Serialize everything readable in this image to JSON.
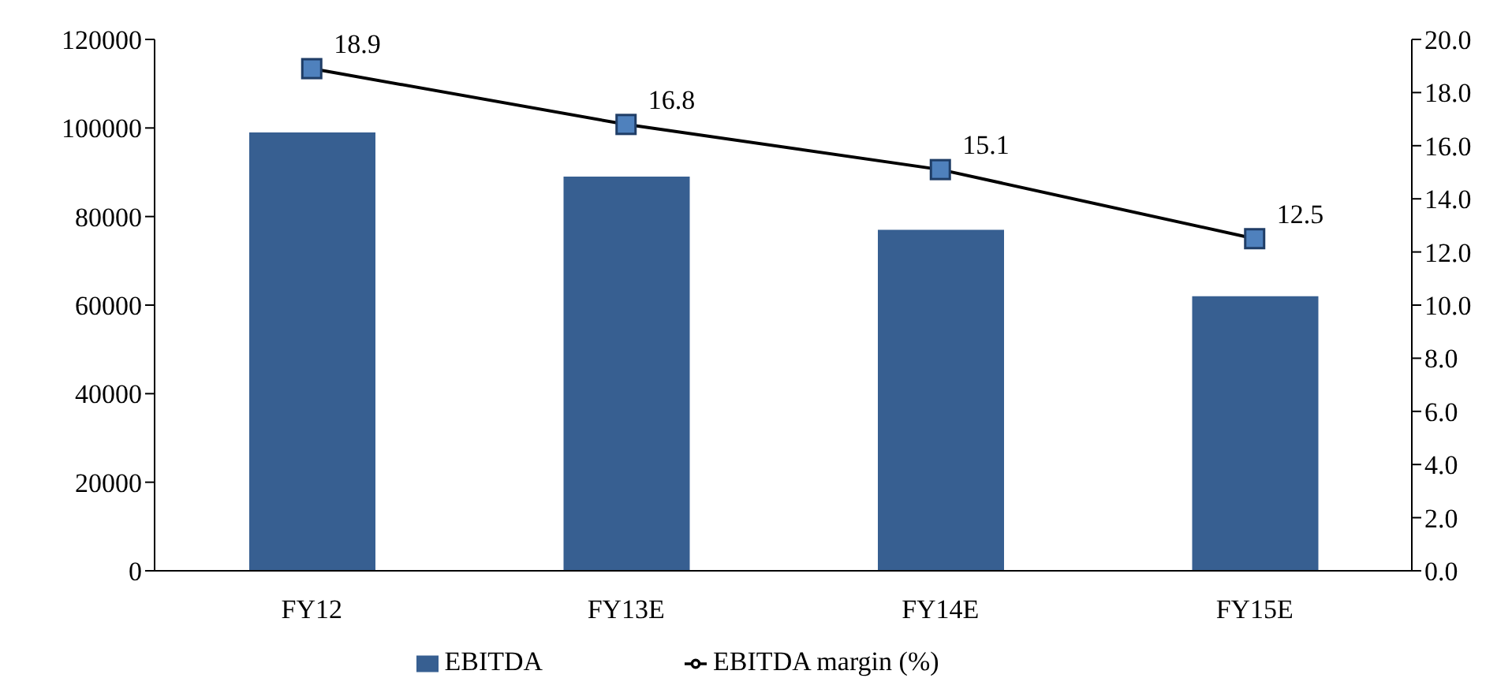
{
  "chart_data": {
    "type": "bar",
    "categories": [
      "FY12",
      "FY13E",
      "FY14E",
      "FY15E"
    ],
    "series": [
      {
        "name": "EBITDA",
        "color": "#375f91",
        "values": [
          99000,
          89000,
          77000,
          62000
        ]
      },
      {
        "name": "EBITDA margin (%)",
        "type": "line",
        "axis": "y2",
        "color": "#000000",
        "marker": "square",
        "values": [
          18.9,
          16.8,
          15.1,
          12.5
        ],
        "data_labels": true
      }
    ],
    "ylim": [
      0,
      120000
    ],
    "yticks": [
      0,
      20000,
      40000,
      60000,
      80000,
      100000,
      120000
    ],
    "y2lim": [
      0,
      20
    ],
    "y2ticks": [
      {
        "value": 0,
        "label": "0.0"
      },
      {
        "value": 2,
        "label": "2.0"
      },
      {
        "value": 4,
        "label": "4.0"
      },
      {
        "value": 6,
        "label": "6.0"
      },
      {
        "value": 8,
        "label": "8.0"
      },
      {
        "value": 10,
        "label": "10.0"
      },
      {
        "value": 12,
        "label": "12.0"
      },
      {
        "value": 14,
        "label": "14.0"
      },
      {
        "value": 16,
        "label": "16.0"
      },
      {
        "value": 18,
        "label": "18.0"
      },
      {
        "value": 20,
        "label": "20.0"
      }
    ],
    "grid": false,
    "legend": "bottom"
  }
}
